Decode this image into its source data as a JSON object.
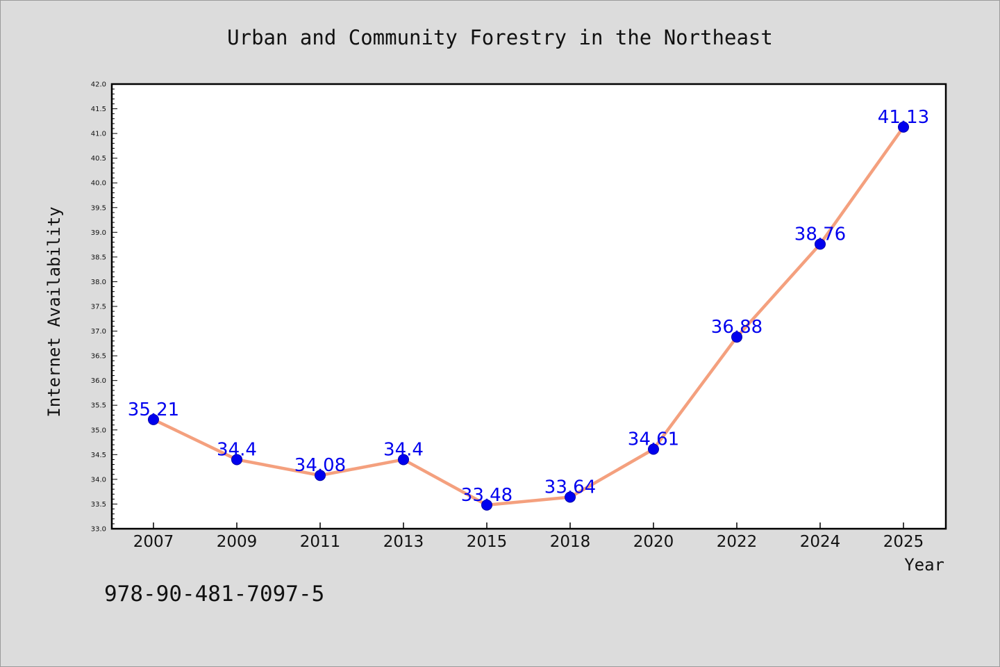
{
  "chart_data": {
    "type": "line",
    "title": "Urban and Community Forestry in the Northeast",
    "xlabel": "Year",
    "ylabel": "Internet Availability",
    "categories": [
      "2007",
      "2009",
      "2011",
      "2013",
      "2015",
      "2018",
      "2020",
      "2022",
      "2024",
      "2025"
    ],
    "series": [
      {
        "values": [
          35.21,
          34.4,
          34.08,
          34.4,
          33.48,
          33.64,
          34.61,
          36.88,
          38.76,
          41.13
        ],
        "line_color": "#f4a07e",
        "marker_color": "#0000ee"
      }
    ],
    "ylim": [
      33.0,
      42.0
    ],
    "yticks": [
      "33.0",
      "33.5",
      "34.0",
      "34.5",
      "35.0",
      "35.5",
      "36.0",
      "36.5",
      "37.0",
      "37.5",
      "38.0",
      "38.5",
      "39.0",
      "39.5",
      "40.0",
      "40.5",
      "41.0",
      "41.5",
      "42.0"
    ],
    "data_labels": [
      "35.21",
      "34.4",
      "34.08",
      "34.4",
      "33.48",
      "33.64",
      "34.61",
      "36.88",
      "38.76",
      "41.13"
    ],
    "data_label_color": "#0000ee",
    "grid": false,
    "legend": "none"
  },
  "footer": {
    "isbn": "978-90-481-7097-5"
  }
}
